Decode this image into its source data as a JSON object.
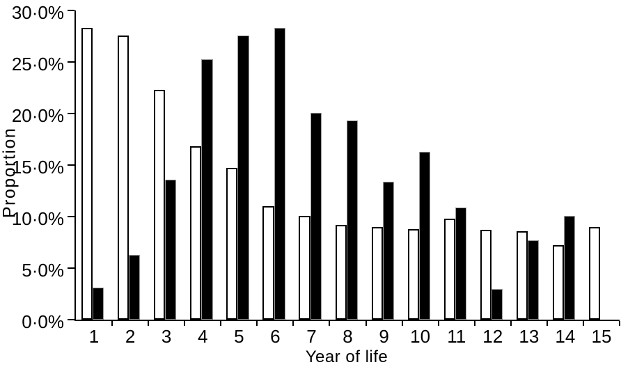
{
  "chart_data": {
    "type": "bar",
    "title": "",
    "xlabel": "Year of life",
    "ylabel": "Proportion",
    "categories": [
      "1",
      "2",
      "3",
      "4",
      "5",
      "6",
      "7",
      "8",
      "9",
      "10",
      "11",
      "12",
      "13",
      "14",
      "15"
    ],
    "series": [
      {
        "name": "white-bars",
        "fill": "#ffffff",
        "outline": "#000000",
        "values": [
          28.3,
          27.6,
          22.3,
          16.8,
          14.7,
          11.0,
          10.1,
          9.2,
          9.0,
          8.8,
          9.8,
          8.7,
          8.6,
          7.2,
          9.0
        ]
      },
      {
        "name": "black-bars",
        "fill": "#000000",
        "outline": "#9b9b9b",
        "values": [
          3.1,
          6.3,
          13.6,
          25.3,
          27.6,
          28.3,
          20.1,
          19.3,
          13.4,
          16.3,
          10.9,
          3.0,
          7.7,
          10.1,
          null
        ]
      }
    ],
    "ylim": [
      0,
      30
    ],
    "ytick_step": 5,
    "ytick_labels": [
      "0·0%",
      "5·0%",
      "10·0%",
      "15·0%",
      "20·0%",
      "25·0%",
      "30·0%"
    ],
    "grid": false,
    "legend_position": "none"
  },
  "colors": {
    "axis": "#000000",
    "background": "#ffffff"
  }
}
